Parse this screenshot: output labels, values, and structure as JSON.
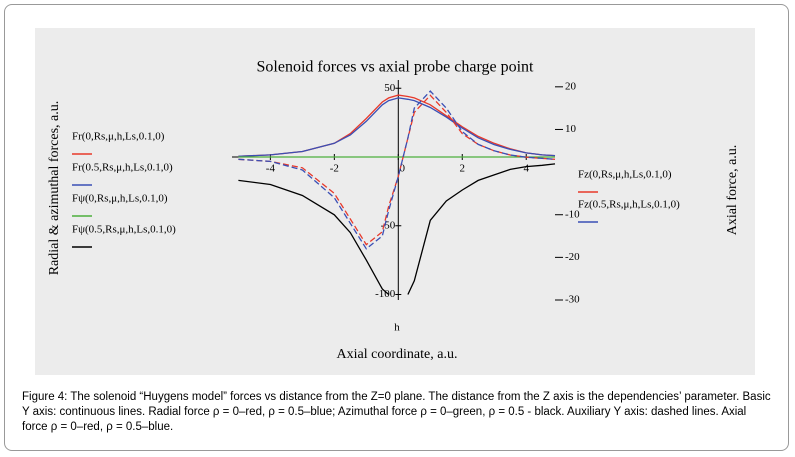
{
  "chart_data": {
    "type": "line",
    "title": "Solenoid forces vs axial probe charge point",
    "xlabel": "Axial coordinate, a.u.",
    "xvar_label": "h",
    "ylabel": "Radial & azimuthal forces, a.u.",
    "y2label": "Axial force, a.u.",
    "caption": "Figure 4: The solenoid “Huygens model” forces vs distance from the Z=0 plane. The distance from the Z axis is the dependencies’ parameter. Basic Y axis: continuous lines. Radial force ρ = 0–red, ρ = 0.5–blue; Azimuthal force ρ = 0–green, ρ = 0.5 - black. Auxiliary Y axis: dashed lines. Axial force ρ = 0–red, ρ = 0.5–blue.",
    "x": [
      -5,
      -4,
      -3,
      -2,
      -1.5,
      -1,
      -0.5,
      -0.3,
      0,
      0.3,
      0.5,
      1,
      1.5,
      2,
      2.5,
      3,
      3.5,
      4,
      4.5,
      4.9
    ],
    "xlim": [
      -5.2,
      4.9
    ],
    "xticks": [
      -4,
      -2,
      0,
      2,
      4
    ],
    "ylim": [
      -104,
      56
    ],
    "yticks": [
      50,
      -50,
      -100
    ],
    "y2lim": [
      -30,
      21.6
    ],
    "y2ticks": [
      20,
      10,
      -10,
      -20,
      -30
    ],
    "series": [
      {
        "name": "Fr(0,Rs,μ,h,Ls,0.1,0)",
        "color": "#e8392a",
        "dashed": false,
        "axis": "y",
        "values": [
          0.5,
          1.5,
          4,
          10,
          17,
          28,
          40,
          43,
          45,
          44,
          43,
          38,
          30,
          22,
          15,
          10,
          6,
          3,
          1.5,
          1
        ]
      },
      {
        "name": "Fr(0.5,Rs,μ,h,Ls,0.1,0)",
        "color": "#3a4fb5",
        "dashed": false,
        "axis": "y",
        "values": [
          0.5,
          1.5,
          4,
          10,
          16,
          26,
          38,
          41,
          43,
          42,
          41,
          36,
          29,
          21,
          14,
          9,
          5.5,
          3,
          1.5,
          1
        ]
      },
      {
        "name": "Fψ(0,Rs,μ,h,Ls,0.1,0)",
        "color": "#4caf3c",
        "dashed": false,
        "axis": "y",
        "values": [
          0,
          0,
          0,
          0,
          0,
          0,
          0,
          0,
          0,
          0,
          0,
          0,
          0,
          0,
          0,
          0,
          0,
          0,
          0,
          0
        ]
      },
      {
        "name": "Fψ(0.5,Rs,μ,h,Ls,0.1,0)",
        "color": "#000000",
        "dashed": false,
        "axis": "y",
        "values": [
          -17,
          -20,
          -28,
          -42,
          -55,
          -75,
          -96,
          -100,
          null,
          -100,
          -90,
          -46,
          -32,
          -24,
          -17,
          -13,
          -9,
          -7,
          -6,
          -5
        ]
      },
      {
        "name": "Fz(0,Rs,μ,h,Ls,0.1,0)",
        "color": "#e8392a",
        "dashed": true,
        "axis": "y2",
        "values": [
          3,
          2.5,
          1,
          -5,
          -11,
          -17,
          -14,
          -8,
          -1,
          8,
          14,
          18,
          14,
          9,
          6.5,
          5,
          4,
          3.5,
          3.2,
          3
        ]
      },
      {
        "name": "Fz(0.5,Rs,μ,h,Ls,0.1,0)",
        "color": "#3a4fb5",
        "dashed": true,
        "axis": "y2",
        "values": [
          3,
          2.5,
          0.5,
          -6,
          -12,
          -18,
          -15,
          -9,
          -1,
          8,
          15,
          19,
          15,
          9.5,
          6.5,
          5,
          4,
          3.5,
          3.2,
          3
        ]
      }
    ]
  }
}
